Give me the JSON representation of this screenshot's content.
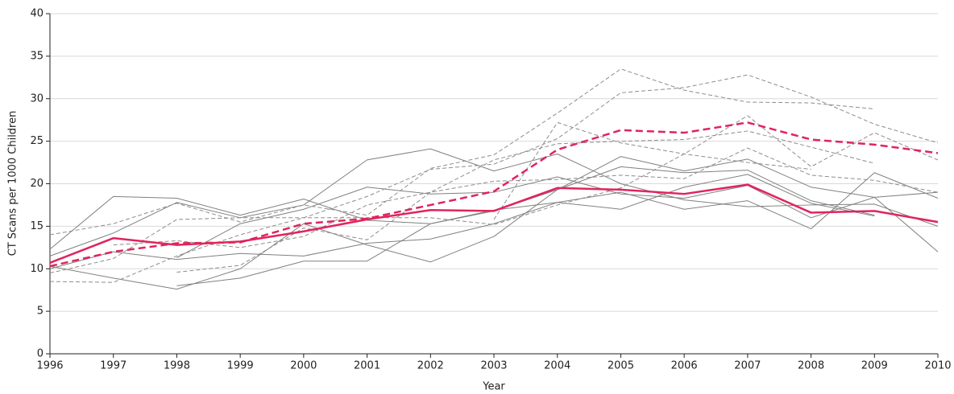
{
  "chart_data": {
    "type": "line",
    "x_label": "Year",
    "y_label": "CT Scans per 1000 Children",
    "x": [
      1996,
      1997,
      1998,
      1999,
      2000,
      2001,
      2002,
      2003,
      2004,
      2005,
      2006,
      2007,
      2008,
      2009,
      2010
    ],
    "xlim": [
      1996,
      2010
    ],
    "xticks": [
      1996,
      1997,
      1998,
      1999,
      2000,
      2001,
      2002,
      2003,
      2004,
      2005,
      2006,
      2007,
      2008,
      2009,
      2010
    ],
    "ylim": [
      0,
      40
    ],
    "yticks": [
      0,
      5,
      10,
      15,
      20,
      25,
      30,
      35,
      40
    ],
    "grid": true,
    "series": [
      {
        "color": "#808080",
        "dash": false,
        "width": 1,
        "values": [
          12.3,
          18.5,
          18.3,
          16.3,
          18.2,
          15.7,
          15.3,
          16.8,
          19.3,
          22.0,
          21.3,
          21.6,
          18.0,
          16.3,
          null
        ]
      },
      {
        "color": "#808080",
        "dash": false,
        "width": 1,
        "values": [
          11.5,
          14.2,
          17.8,
          16.0,
          17.5,
          22.8,
          24.1,
          21.5,
          23.5,
          20.0,
          18.1,
          17.3,
          17.5,
          17.6,
          15.0
        ]
      },
      {
        "color": "#808080",
        "dash": false,
        "width": 1,
        "values": [
          10.0,
          12.0,
          11.1,
          11.8,
          11.5,
          13.0,
          13.5,
          15.3,
          17.8,
          19.0,
          17.0,
          18.0,
          14.7,
          21.3,
          18.3
        ]
      },
      {
        "color": "#808080",
        "dash": false,
        "width": 1,
        "values": [
          10.3,
          8.9,
          7.6,
          10.0,
          15.3,
          12.8,
          10.8,
          13.8,
          19.3,
          23.2,
          21.5,
          22.9,
          19.6,
          18.4,
          12.0
        ]
      },
      {
        "color": "#808080",
        "dash": false,
        "width": 1,
        "values": [
          null,
          null,
          8.0,
          8.9,
          10.9,
          10.9,
          15.3,
          16.9,
          17.8,
          17.0,
          19.6,
          21.1,
          17.7,
          16.2,
          null
        ]
      },
      {
        "color": "#808080",
        "dash": false,
        "width": 1,
        "values": [
          null,
          null,
          11.3,
          15.3,
          17.0,
          19.6,
          18.8,
          19.0,
          20.8,
          18.8,
          18.3,
          19.8,
          16.0,
          18.4,
          19.0
        ]
      },
      {
        "color": "#8c8c8c",
        "dash": true,
        "width": 1,
        "values": [
          14.0,
          15.3,
          17.7,
          15.5,
          17.5,
          16.3,
          21.8,
          23.4,
          28.3,
          33.5,
          31.0,
          29.6,
          29.5,
          28.8,
          null
        ]
      },
      {
        "color": "#8c8c8c",
        "dash": true,
        "width": 1,
        "values": [
          8.5,
          8.4,
          11.5,
          14.0,
          16.0,
          18.5,
          21.7,
          22.3,
          25.3,
          30.7,
          31.3,
          32.8,
          30.2,
          27.0,
          24.8
        ]
      },
      {
        "color": "#8c8c8c",
        "dash": true,
        "width": 1,
        "values": [
          9.5,
          11.2,
          15.8,
          16.0,
          16.0,
          16.0,
          16.0,
          15.2,
          17.5,
          19.5,
          23.5,
          28.0,
          22.0,
          26.0,
          22.8
        ]
      },
      {
        "color": "#8c8c8c",
        "dash": true,
        "width": 1,
        "values": [
          null,
          null,
          9.6,
          10.4,
          14.8,
          13.4,
          19.0,
          20.3,
          20.5,
          21.0,
          20.6,
          24.2,
          21.0,
          20.4,
          19.0
        ]
      },
      {
        "color": "#8c8c8c",
        "dash": true,
        "width": 1,
        "values": [
          null,
          12.8,
          13.3,
          12.5,
          13.8,
          17.5,
          19.0,
          22.8,
          24.7,
          25.0,
          25.2,
          26.2,
          24.3,
          22.4,
          null
        ]
      },
      {
        "color": "#8c8c8c",
        "dash": true,
        "width": 1,
        "values": [
          null,
          null,
          null,
          null,
          null,
          null,
          null,
          15.8,
          27.2,
          24.8,
          23.5,
          22.5,
          21.7,
          null,
          null
        ]
      },
      {
        "color": "#e0245e",
        "dash": false,
        "width": 2.5,
        "values": [
          10.7,
          13.6,
          12.8,
          13.2,
          14.4,
          15.8,
          16.9,
          16.8,
          19.5,
          19.3,
          18.8,
          19.9,
          16.6,
          16.8,
          15.5
        ]
      },
      {
        "color": "#e0245e",
        "dash": true,
        "width": 2.5,
        "values": [
          10.3,
          12.0,
          13.0,
          13.1,
          15.3,
          15.9,
          17.5,
          19.1,
          24.0,
          26.3,
          26.0,
          27.2,
          25.2,
          24.6,
          23.6
        ]
      }
    ]
  }
}
